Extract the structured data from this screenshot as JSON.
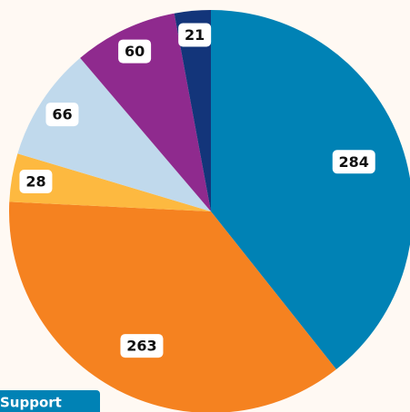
{
  "chart_data": {
    "type": "pie",
    "categories": [
      "Support",
      null,
      null,
      null,
      null,
      null
    ],
    "values": [
      284,
      263,
      28,
      66,
      60,
      21
    ],
    "colors": [
      "#0082b5",
      "#f58220",
      "#fdb940",
      "#c0d9ec",
      "#8f2a8e",
      "#13357a"
    ]
  }
}
